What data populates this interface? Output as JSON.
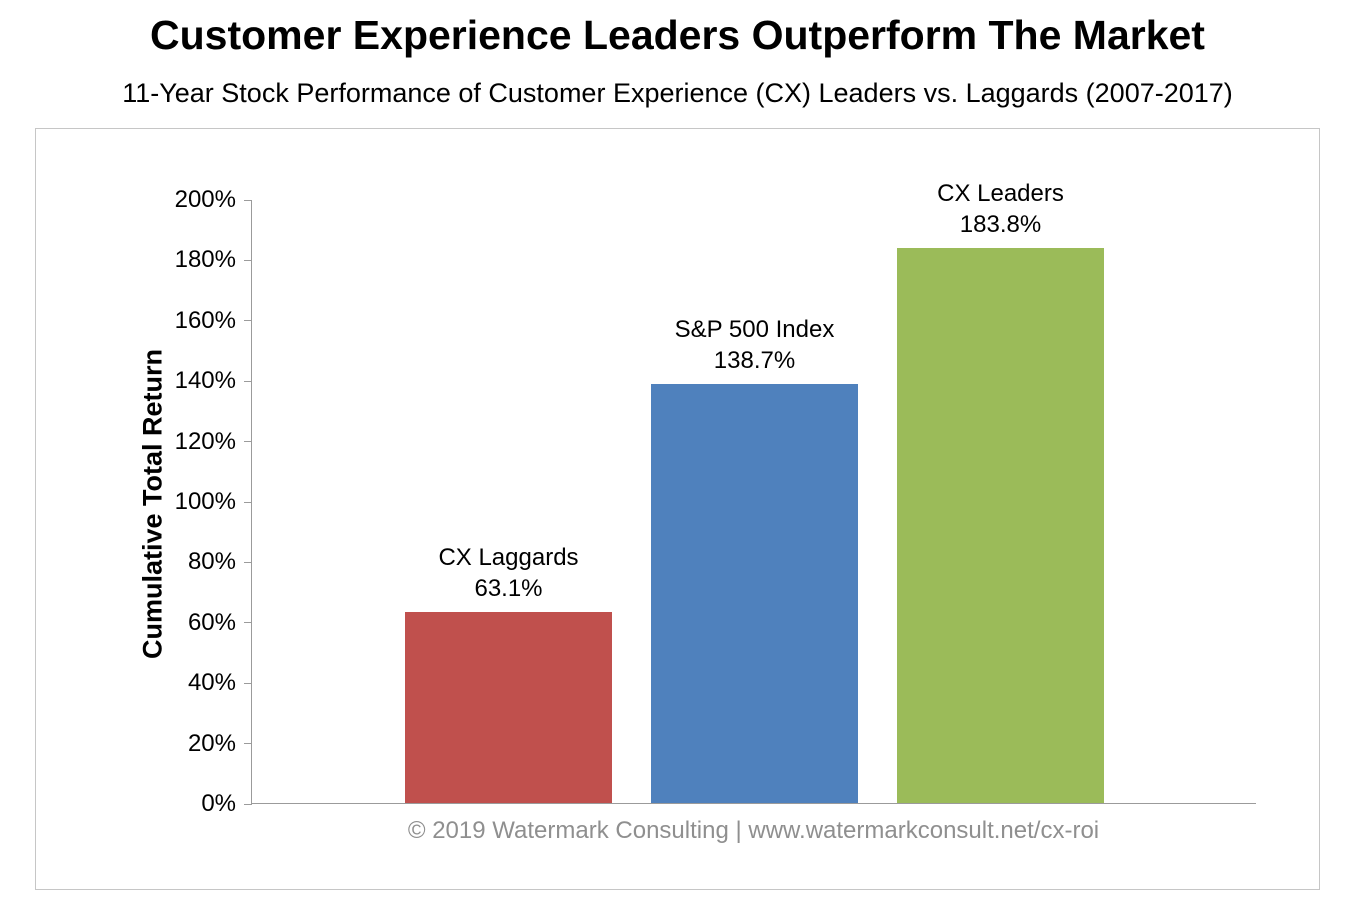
{
  "page": {
    "title": "Customer Experience Leaders Outperform The Market",
    "subtitle": "11-Year Stock Performance of Customer Experience (CX) Leaders vs. Laggards (2007-2017)",
    "footer": "© 2019 Watermark Consulting | www.watermarkconsult.net/cx-roi"
  },
  "chart_data": {
    "type": "bar",
    "title": "Customer Experience Leaders Outperform The Market",
    "subtitle": "11-Year Stock Performance of Customer Experience (CX) Leaders vs. Laggards (2007-2017)",
    "categories": [
      "CX Laggards",
      "S&P 500 Index",
      "CX Leaders"
    ],
    "values": [
      63.1,
      138.7,
      183.8
    ],
    "value_labels": [
      "63.1%",
      "138.7%",
      "183.8%"
    ],
    "bar_colors": [
      "#C0504D",
      "#4F81BD",
      "#9BBB59"
    ],
    "xlabel": "",
    "ylabel": "Cumulative Total Return",
    "ylim": [
      0,
      200
    ],
    "ytick_step": 20,
    "ytick_suffix": "%",
    "grid": false,
    "legend_position": "none",
    "axis_color": "#9b9b9b"
  }
}
